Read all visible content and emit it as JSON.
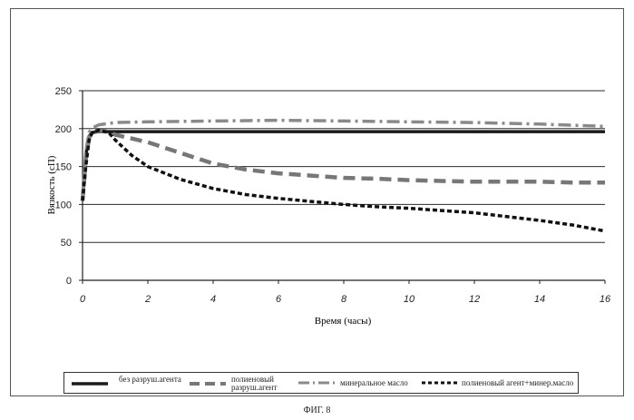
{
  "figure": {
    "caption": "ФИГ. 8"
  },
  "chart_data": {
    "type": "line",
    "xlabel": "Время (часы)",
    "ylabel": "Вязкость (сП)",
    "xlim": [
      0,
      16
    ],
    "ylim": [
      0,
      250
    ],
    "xticks": [
      0,
      2,
      4,
      6,
      8,
      10,
      12,
      14,
      16
    ],
    "yticks": [
      0,
      50,
      100,
      150,
      200,
      250
    ],
    "grid": {
      "horizontal": true,
      "vertical": false
    },
    "legend_position": "bottom",
    "series": [
      {
        "name": "без разруш.агента",
        "style": "solid",
        "color": "#1a1a1a",
        "x": [
          0,
          0.1,
          0.2,
          0.3,
          0.5,
          1,
          2,
          4,
          6,
          8,
          10,
          12,
          14,
          16
        ],
        "y": [
          105,
          165,
          190,
          195,
          196,
          196,
          196,
          196,
          196,
          196,
          196,
          196,
          196,
          196
        ]
      },
      {
        "name": "полиеновый разруш.агент",
        "style": "long-dash",
        "color": "#777777",
        "x": [
          0,
          0.1,
          0.2,
          0.3,
          0.5,
          0.8,
          1,
          2,
          3,
          4,
          5,
          6,
          7,
          8,
          9,
          10,
          11,
          12,
          13,
          14,
          15,
          16
        ],
        "y": [
          105,
          160,
          188,
          195,
          197,
          196,
          192,
          182,
          168,
          154,
          146,
          141,
          138,
          135,
          134,
          132,
          131,
          130,
          130,
          130,
          129,
          129
        ]
      },
      {
        "name": "минеральное масло",
        "style": "dash-dot",
        "color": "#8a8a8a",
        "x": [
          0,
          0.1,
          0.2,
          0.3,
          0.5,
          1,
          2,
          4,
          6,
          8,
          10,
          12,
          14,
          16
        ],
        "y": [
          108,
          170,
          195,
          201,
          205,
          208,
          209,
          210,
          211,
          210,
          209,
          208,
          206,
          203
        ]
      },
      {
        "name": "полиеновый агент+минер.масло",
        "style": "short-dash",
        "color": "#111111",
        "x": [
          0,
          0.1,
          0.2,
          0.3,
          0.5,
          0.8,
          1,
          1.5,
          2,
          3,
          4,
          5,
          6,
          7,
          8,
          9,
          10,
          11,
          12,
          13,
          14,
          15,
          16
        ],
        "y": [
          105,
          150,
          185,
          195,
          198,
          195,
          185,
          165,
          150,
          133,
          121,
          113,
          108,
          104,
          100,
          97,
          95,
          92,
          89,
          84,
          79,
          73,
          65
        ]
      }
    ]
  }
}
